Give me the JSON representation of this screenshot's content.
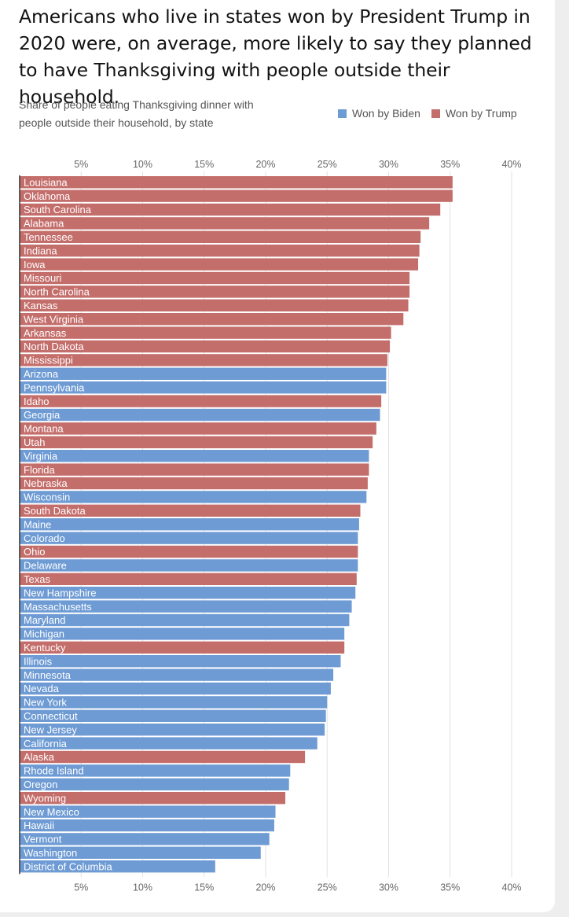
{
  "title": "Americans who live in states won by President Trump in 2020 were, on average, more likely to say they planned to have Thanksgiving with people outside their household.",
  "subtitle_lines": [
    "Share of people eating Thanksgiving dinner with",
    "people outside their household, by state"
  ],
  "legend": [
    {
      "key": "biden",
      "label": "Won by Biden",
      "color": "#6e9bd4"
    },
    {
      "key": "trump",
      "label": "Won by Trump",
      "color": "#c46e6b"
    }
  ],
  "chart_data": {
    "type": "bar",
    "orientation": "horizontal",
    "unit": "%",
    "xlim": [
      0,
      40
    ],
    "ticks": [
      5,
      10,
      15,
      20,
      25,
      30,
      35,
      40
    ],
    "tick_labels": [
      "5%",
      "10%",
      "15%",
      "20%",
      "25%",
      "30%",
      "35%",
      "40%"
    ],
    "grid": true,
    "legend_position": "top-right",
    "colors": {
      "biden": "#6e9bd4",
      "trump": "#c46e6b"
    },
    "bars": [
      {
        "state": "Louisiana",
        "value": 35.2,
        "won_by": "trump"
      },
      {
        "state": "Oklahoma",
        "value": 35.2,
        "won_by": "trump"
      },
      {
        "state": "South Carolina",
        "value": 34.2,
        "won_by": "trump"
      },
      {
        "state": "Alabama",
        "value": 33.3,
        "won_by": "trump"
      },
      {
        "state": "Tennessee",
        "value": 32.6,
        "won_by": "trump"
      },
      {
        "state": "Indiana",
        "value": 32.5,
        "won_by": "trump"
      },
      {
        "state": "Iowa",
        "value": 32.4,
        "won_by": "trump"
      },
      {
        "state": "Missouri",
        "value": 31.7,
        "won_by": "trump"
      },
      {
        "state": "North Carolina",
        "value": 31.7,
        "won_by": "trump"
      },
      {
        "state": "Kansas",
        "value": 31.6,
        "won_by": "trump"
      },
      {
        "state": "West Virginia",
        "value": 31.2,
        "won_by": "trump"
      },
      {
        "state": "Arkansas",
        "value": 30.2,
        "won_by": "trump"
      },
      {
        "state": "North Dakota",
        "value": 30.1,
        "won_by": "trump"
      },
      {
        "state": "Mississippi",
        "value": 29.9,
        "won_by": "trump"
      },
      {
        "state": "Arizona",
        "value": 29.8,
        "won_by": "biden"
      },
      {
        "state": "Pennsylvania",
        "value": 29.8,
        "won_by": "biden"
      },
      {
        "state": "Idaho",
        "value": 29.4,
        "won_by": "trump"
      },
      {
        "state": "Georgia",
        "value": 29.3,
        "won_by": "biden"
      },
      {
        "state": "Montana",
        "value": 29.0,
        "won_by": "trump"
      },
      {
        "state": "Utah",
        "value": 28.7,
        "won_by": "trump"
      },
      {
        "state": "Virginia",
        "value": 28.4,
        "won_by": "biden"
      },
      {
        "state": "Florida",
        "value": 28.4,
        "won_by": "trump"
      },
      {
        "state": "Nebraska",
        "value": 28.3,
        "won_by": "trump"
      },
      {
        "state": "Wisconsin",
        "value": 28.2,
        "won_by": "biden"
      },
      {
        "state": "South Dakota",
        "value": 27.7,
        "won_by": "trump"
      },
      {
        "state": "Maine",
        "value": 27.6,
        "won_by": "biden"
      },
      {
        "state": "Colorado",
        "value": 27.5,
        "won_by": "biden"
      },
      {
        "state": "Ohio",
        "value": 27.5,
        "won_by": "trump"
      },
      {
        "state": "Delaware",
        "value": 27.5,
        "won_by": "biden"
      },
      {
        "state": "Texas",
        "value": 27.4,
        "won_by": "trump"
      },
      {
        "state": "New Hampshire",
        "value": 27.3,
        "won_by": "biden"
      },
      {
        "state": "Massachusetts",
        "value": 27.0,
        "won_by": "biden"
      },
      {
        "state": "Maryland",
        "value": 26.8,
        "won_by": "biden"
      },
      {
        "state": "Michigan",
        "value": 26.4,
        "won_by": "biden"
      },
      {
        "state": "Kentucky",
        "value": 26.4,
        "won_by": "trump"
      },
      {
        "state": "Illinois",
        "value": 26.1,
        "won_by": "biden"
      },
      {
        "state": "Minnesota",
        "value": 25.5,
        "won_by": "biden"
      },
      {
        "state": "Nevada",
        "value": 25.3,
        "won_by": "biden"
      },
      {
        "state": "New York",
        "value": 25.0,
        "won_by": "biden"
      },
      {
        "state": "Connecticut",
        "value": 24.9,
        "won_by": "biden"
      },
      {
        "state": "New Jersey",
        "value": 24.8,
        "won_by": "biden"
      },
      {
        "state": "California",
        "value": 24.2,
        "won_by": "biden"
      },
      {
        "state": "Alaska",
        "value": 23.2,
        "won_by": "trump"
      },
      {
        "state": "Rhode Island",
        "value": 22.0,
        "won_by": "biden"
      },
      {
        "state": "Oregon",
        "value": 21.9,
        "won_by": "biden"
      },
      {
        "state": "Wyoming",
        "value": 21.6,
        "won_by": "trump"
      },
      {
        "state": "New Mexico",
        "value": 20.8,
        "won_by": "biden"
      },
      {
        "state": "Hawaii",
        "value": 20.7,
        "won_by": "biden"
      },
      {
        "state": "Vermont",
        "value": 20.3,
        "won_by": "biden"
      },
      {
        "state": "Washington",
        "value": 19.6,
        "won_by": "biden"
      },
      {
        "state": "District of Columbia",
        "value": 15.9,
        "won_by": "biden"
      }
    ]
  }
}
